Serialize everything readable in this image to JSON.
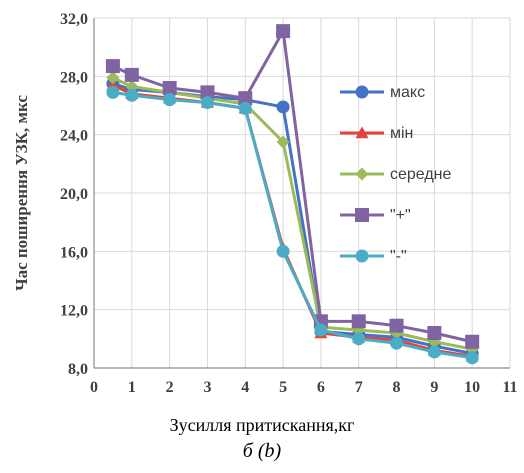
{
  "chart_data": {
    "type": "line",
    "xlabel": "Зусилля притискання,кг",
    "ylabel": "Час поширення УЗК, мкс",
    "caption": "б (b)",
    "xlim": [
      0,
      11
    ],
    "ylim": [
      8,
      32
    ],
    "x_ticks": [
      "0",
      "1",
      "2",
      "3",
      "4",
      "5",
      "6",
      "7",
      "8",
      "9",
      "10",
      "11"
    ],
    "y_ticks": [
      "8,0",
      "12,0",
      "16,0",
      "20,0",
      "24,0",
      "28,0",
      "32,0"
    ],
    "grid": true,
    "legend_position": "right",
    "x": [
      0.5,
      1,
      2,
      3,
      4,
      5,
      6,
      7,
      8,
      9,
      10
    ],
    "series": [
      {
        "name": "макс",
        "color": "#4472C4",
        "marker": "circle",
        "values": [
          27.5,
          27.1,
          26.9,
          26.6,
          26.4,
          25.9,
          10.5,
          10.3,
          10.1,
          9.5,
          9.0
        ]
      },
      {
        "name": "мін",
        "color": "#E0443A",
        "marker": "triangle",
        "values": [
          27.4,
          26.8,
          26.5,
          26.2,
          25.8,
          16.2,
          10.4,
          10.1,
          9.9,
          9.2,
          8.8
        ]
      },
      {
        "name": "середне",
        "color": "#9BBB59",
        "marker": "diamond",
        "values": [
          27.9,
          27.3,
          26.9,
          26.5,
          26.1,
          23.5,
          10.8,
          10.6,
          10.4,
          9.8,
          9.3
        ]
      },
      {
        "name": "\"+\"",
        "color": "#8064A2",
        "marker": "square",
        "values": [
          28.7,
          28.1,
          27.2,
          26.9,
          26.5,
          31.1,
          11.2,
          11.2,
          10.9,
          10.4,
          9.8
        ]
      },
      {
        "name": "\"-\"",
        "color": "#4BACC6",
        "marker": "circle",
        "values": [
          26.9,
          26.7,
          26.4,
          26.2,
          25.8,
          16.0,
          10.6,
          10.0,
          9.7,
          9.1,
          8.7
        ]
      }
    ]
  }
}
